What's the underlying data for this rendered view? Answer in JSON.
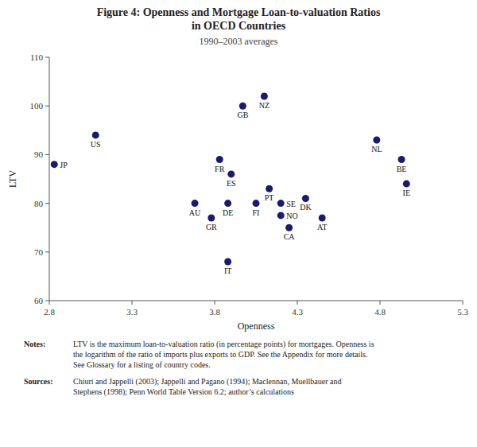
{
  "chart_data": {
    "type": "scatter",
    "title": "Figure 4: Openness and Mortgage Loan-to-valuation Ratios\nin OECD Countries",
    "subtitle": "1990–2003 averages",
    "x_label": "Openness",
    "y_label": "LTV",
    "xlim": [
      2.8,
      5.3
    ],
    "ylim": [
      60,
      110
    ],
    "xticks": [
      2.8,
      3.3,
      3.8,
      4.3,
      4.8,
      5.3
    ],
    "yticks": [
      60,
      70,
      80,
      90,
      100,
      110
    ],
    "grid": false,
    "color": "#1a1a6e",
    "labels": [
      "JP",
      "US",
      "AU",
      "GR",
      "FR",
      "ES",
      "DE",
      "IT",
      "GB",
      "NZ",
      "FI",
      "PT",
      "SE",
      "NO",
      "CA",
      "DK",
      "AT",
      "NL",
      "BE",
      "IE"
    ],
    "x": [
      2.83,
      3.08,
      3.68,
      3.78,
      3.83,
      3.9,
      3.88,
      3.88,
      3.97,
      4.1,
      4.05,
      4.13,
      4.2,
      4.2,
      4.25,
      4.35,
      4.45,
      4.78,
      4.93,
      4.96
    ],
    "values": [
      88,
      94,
      80,
      77,
      89,
      86,
      80,
      68,
      100,
      102,
      80,
      83,
      80,
      77.5,
      75,
      81,
      77,
      93,
      89,
      84
    ],
    "annotations": [
      {
        "label": "Notes:",
        "text": "LTV is the maximum loan-to-valuation ratio (in percentage points) for mortgages. Openness is\nthe logarithm of the ratio of imports plus exports to GDP. See the Appendix for more details.\nSee Glossary for a listing of country codes."
      },
      {
        "label": "Sources:",
        "text": "Chiuri and Jappelli (2003); Jappelli and Pagano (1994); Maclennan, Muellbauer and\nStephens (1998); Penn World Table Version 6.2; author’s calculations"
      }
    ]
  }
}
